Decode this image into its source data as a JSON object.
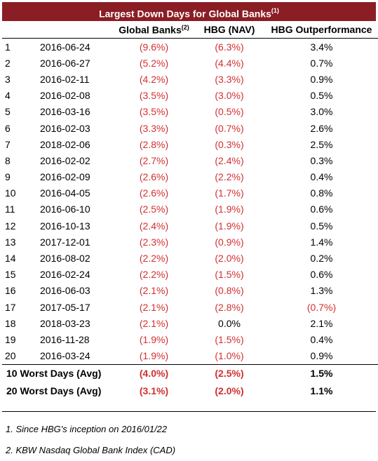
{
  "title": "Largest Down Days for Global Banks",
  "title_sup": "(1)",
  "headers": {
    "global_banks": "Global Banks",
    "global_banks_sup": "(2)",
    "hbg_nav": "HBG (NAV)",
    "outperformance": "HBG Outperformance"
  },
  "rows": [
    {
      "rank": "1",
      "date": "2016-06-24",
      "global_banks": "(9.6%)",
      "hbg_nav": "(6.3%)",
      "outperformance": "3.4%"
    },
    {
      "rank": "2",
      "date": "2016-06-27",
      "global_banks": "(5.2%)",
      "hbg_nav": "(4.4%)",
      "outperformance": "0.7%"
    },
    {
      "rank": "3",
      "date": "2016-02-11",
      "global_banks": "(4.2%)",
      "hbg_nav": "(3.3%)",
      "outperformance": "0.9%"
    },
    {
      "rank": "4",
      "date": "2016-02-08",
      "global_banks": "(3.5%)",
      "hbg_nav": "(3.0%)",
      "outperformance": "0.5%"
    },
    {
      "rank": "5",
      "date": "2016-03-16",
      "global_banks": "(3.5%)",
      "hbg_nav": "(0.5%)",
      "outperformance": "3.0%"
    },
    {
      "rank": "6",
      "date": "2016-02-03",
      "global_banks": "(3.3%)",
      "hbg_nav": "(0.7%)",
      "outperformance": "2.6%"
    },
    {
      "rank": "7",
      "date": "2018-02-06",
      "global_banks": "(2.8%)",
      "hbg_nav": "(0.3%)",
      "outperformance": "2.5%"
    },
    {
      "rank": "8",
      "date": "2016-02-02",
      "global_banks": "(2.7%)",
      "hbg_nav": "(2.4%)",
      "outperformance": "0.3%"
    },
    {
      "rank": "9",
      "date": "2016-02-09",
      "global_banks": "(2.6%)",
      "hbg_nav": "(2.2%)",
      "outperformance": "0.4%"
    },
    {
      "rank": "10",
      "date": "2016-04-05",
      "global_banks": "(2.6%)",
      "hbg_nav": "(1.7%)",
      "outperformance": "0.8%"
    },
    {
      "rank": "11",
      "date": "2016-06-10",
      "global_banks": "(2.5%)",
      "hbg_nav": "(1.9%)",
      "outperformance": "0.6%"
    },
    {
      "rank": "12",
      "date": "2016-10-13",
      "global_banks": "(2.4%)",
      "hbg_nav": "(1.9%)",
      "outperformance": "0.5%"
    },
    {
      "rank": "13",
      "date": "2017-12-01",
      "global_banks": "(2.3%)",
      "hbg_nav": "(0.9%)",
      "outperformance": "1.4%"
    },
    {
      "rank": "14",
      "date": "2016-08-02",
      "global_banks": "(2.2%)",
      "hbg_nav": "(2.0%)",
      "outperformance": "0.2%"
    },
    {
      "rank": "15",
      "date": "2016-02-24",
      "global_banks": "(2.2%)",
      "hbg_nav": "(1.5%)",
      "outperformance": "0.6%"
    },
    {
      "rank": "16",
      "date": "2016-06-03",
      "global_banks": "(2.1%)",
      "hbg_nav": "(0.8%)",
      "outperformance": "1.3%"
    },
    {
      "rank": "17",
      "date": "2017-05-17",
      "global_banks": "(2.1%)",
      "hbg_nav": "(2.8%)",
      "outperformance": "(0.7%)"
    },
    {
      "rank": "18",
      "date": "2018-03-23",
      "global_banks": "(2.1%)",
      "hbg_nav": "0.0%",
      "outperformance": "2.1%"
    },
    {
      "rank": "19",
      "date": "2016-11-28",
      "global_banks": "(1.9%)",
      "hbg_nav": "(1.5%)",
      "outperformance": "0.4%"
    },
    {
      "rank": "20",
      "date": "2016-03-24",
      "global_banks": "(1.9%)",
      "hbg_nav": "(1.0%)",
      "outperformance": "0.9%"
    }
  ],
  "summary": [
    {
      "label": "10 Worst Days (Avg)",
      "global_banks": "(4.0%)",
      "hbg_nav": "(2.5%)",
      "outperformance": "1.5%"
    },
    {
      "label": "20 Worst Days (Avg)",
      "global_banks": "(3.1%)",
      "hbg_nav": "(2.0%)",
      "outperformance": "1.1%"
    }
  ],
  "footnotes": [
    "1. Since HBG's inception on 2016/01/22",
    "2. KBW Nasdaq Global Bank Index (CAD)"
  ],
  "colors": {
    "title_bg": "#8b1d24",
    "negative": "#d32f2f"
  }
}
